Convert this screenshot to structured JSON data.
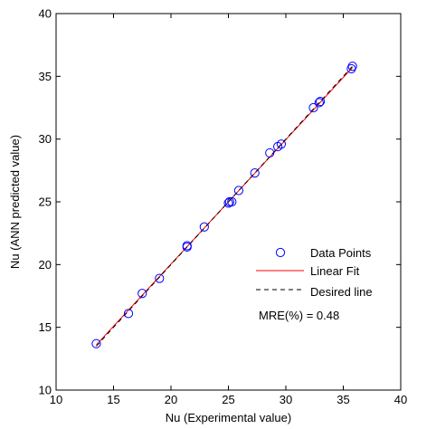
{
  "chart_data": {
    "type": "scatter",
    "title": "",
    "xlabel": "Nu (Experimental value)",
    "ylabel": "Nu (ANN predicted value)",
    "xlim": [
      10,
      40
    ],
    "ylim": [
      10,
      40
    ],
    "xticks": [
      10,
      15,
      20,
      25,
      30,
      35,
      40
    ],
    "yticks": [
      10,
      15,
      20,
      25,
      30,
      35,
      40
    ],
    "grid": false,
    "legend_position": "lower-right",
    "series": [
      {
        "name": "Data Points",
        "kind": "scatter",
        "marker": "open-circle",
        "color": "#0000ff",
        "x": [
          13.5,
          16.3,
          17.5,
          19.0,
          21.4,
          21.4,
          22.9,
          25.0,
          25.1,
          25.3,
          25.9,
          27.3,
          28.6,
          29.3,
          29.6,
          32.4,
          32.9,
          33.0,
          35.7,
          35.8
        ],
        "y": [
          13.7,
          16.1,
          17.7,
          18.9,
          21.4,
          21.5,
          23.0,
          24.9,
          25.0,
          25.0,
          25.9,
          27.3,
          28.9,
          29.4,
          29.6,
          32.5,
          32.9,
          33.0,
          35.6,
          35.8
        ]
      },
      {
        "name": "Linear Fit",
        "kind": "line",
        "style": "solid",
        "color": "#ff0000",
        "x": [
          13.5,
          35.8
        ],
        "y": [
          13.6,
          35.7
        ]
      },
      {
        "name": "Desired line",
        "kind": "line",
        "style": "dashed",
        "color": "#000000",
        "x": [
          13.5,
          35.8
        ],
        "y": [
          13.5,
          35.8
        ]
      }
    ],
    "annotations": [
      {
        "text": "MRE(%) = 0.48"
      }
    ]
  }
}
